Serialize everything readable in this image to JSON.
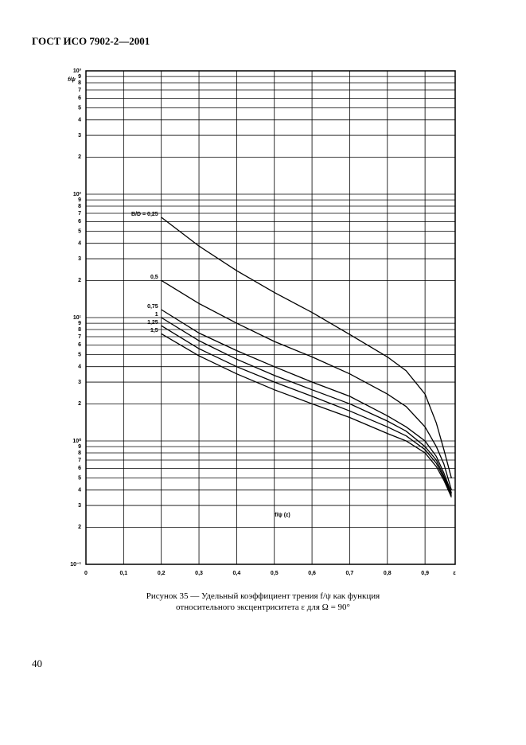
{
  "header": "ГОСТ ИСО 7902-2—2001",
  "page_number": "40",
  "caption": [
    "Рисунок 35 — Удельный коэффициент трения f/ψ как функция",
    "относительного эксцентриситета ε для Ω = 90°"
  ],
  "chart_data": {
    "type": "line",
    "y_label": "f/ψ",
    "x_label": "ε",
    "annotation": "f/ψ (ε)",
    "log_y": true,
    "grid": true,
    "xlim": [
      0,
      0.98
    ],
    "ylim": [
      0.1,
      1000
    ],
    "xticks": [
      0,
      {
        "value": 0.1,
        "label": "0,1"
      },
      {
        "value": 0.2,
        "label": "0,2"
      },
      {
        "value": 0.3,
        "label": "0,3"
      },
      {
        "value": 0.4,
        "label": "0,4"
      },
      {
        "value": 0.5,
        "label": "0,5"
      },
      {
        "value": 0.6,
        "label": "0,6"
      },
      {
        "value": 0.7,
        "label": "0,7"
      },
      {
        "value": 0.8,
        "label": "0,8"
      },
      {
        "value": 0.9,
        "label": "0,9"
      }
    ],
    "yticks": [
      {
        "value": 0.1,
        "label": "10⁻¹"
      },
      {
        "value": 0.2,
        "label": "2"
      },
      {
        "value": 0.3,
        "label": "3"
      },
      {
        "value": 0.4,
        "label": "4"
      },
      {
        "value": 0.5,
        "label": "5"
      },
      {
        "value": 0.6,
        "label": "6"
      },
      {
        "value": 0.7,
        "label": "7"
      },
      {
        "value": 0.8,
        "label": "8"
      },
      {
        "value": 0.9,
        "label": "9"
      },
      {
        "value": 1,
        "label": "10⁰"
      },
      2,
      3,
      4,
      5,
      6,
      7,
      8,
      9,
      {
        "value": 10,
        "label": "10¹"
      },
      {
        "value": 20,
        "label": "2"
      },
      {
        "value": 30,
        "label": "3"
      },
      {
        "value": 40,
        "label": "4"
      },
      {
        "value": 50,
        "label": "5"
      },
      {
        "value": 60,
        "label": "6"
      },
      {
        "value": 70,
        "label": "7"
      },
      {
        "value": 80,
        "label": "8"
      },
      {
        "value": 90,
        "label": "9"
      },
      {
        "value": 100,
        "label": "10²"
      },
      {
        "value": 200,
        "label": "2"
      },
      {
        "value": 300,
        "label": "3"
      },
      {
        "value": 400,
        "label": "4"
      },
      {
        "value": 500,
        "label": "5"
      },
      {
        "value": 600,
        "label": "6"
      },
      {
        "value": 700,
        "label": "7"
      },
      {
        "value": 800,
        "label": "8"
      },
      {
        "value": 900,
        "label": "9"
      },
      {
        "value": 1000,
        "label": "10³"
      }
    ],
    "x": [
      0.2,
      0.3,
      0.4,
      0.5,
      0.6,
      0.7,
      0.8,
      0.85,
      0.9,
      0.93,
      0.95,
      0.97
    ],
    "series": [
      {
        "name": "B/D = 0,25",
        "color": "#000000",
        "values": [
          65,
          38,
          24,
          16,
          11,
          7.3,
          4.8,
          3.7,
          2.4,
          1.4,
          0.85,
          0.5
        ]
      },
      {
        "name": "0,5",
        "color": "#000000",
        "values": [
          20,
          13,
          9,
          6.4,
          4.8,
          3.5,
          2.4,
          1.9,
          1.3,
          0.9,
          0.65,
          0.4
        ]
      },
      {
        "name": "0,75",
        "color": "#000000",
        "values": [
          11.6,
          7.5,
          5.4,
          4,
          3,
          2.3,
          1.6,
          1.3,
          1,
          0.75,
          0.55,
          0.38
        ]
      },
      {
        "name": "1",
        "color": "#000000",
        "values": [
          10,
          6.5,
          4.6,
          3.4,
          2.6,
          2,
          1.45,
          1.2,
          0.9,
          0.7,
          0.52,
          0.37
        ]
      },
      {
        "name": "1,25",
        "color": "#000000",
        "values": [
          8.6,
          5.6,
          4,
          3,
          2.3,
          1.75,
          1.3,
          1.1,
          0.85,
          0.66,
          0.5,
          0.36
        ]
      },
      {
        "name": "1,5",
        "color": "#000000",
        "values": [
          7.4,
          4.9,
          3.5,
          2.6,
          2,
          1.55,
          1.15,
          1,
          0.8,
          0.62,
          0.48,
          0.35
        ]
      }
    ]
  }
}
